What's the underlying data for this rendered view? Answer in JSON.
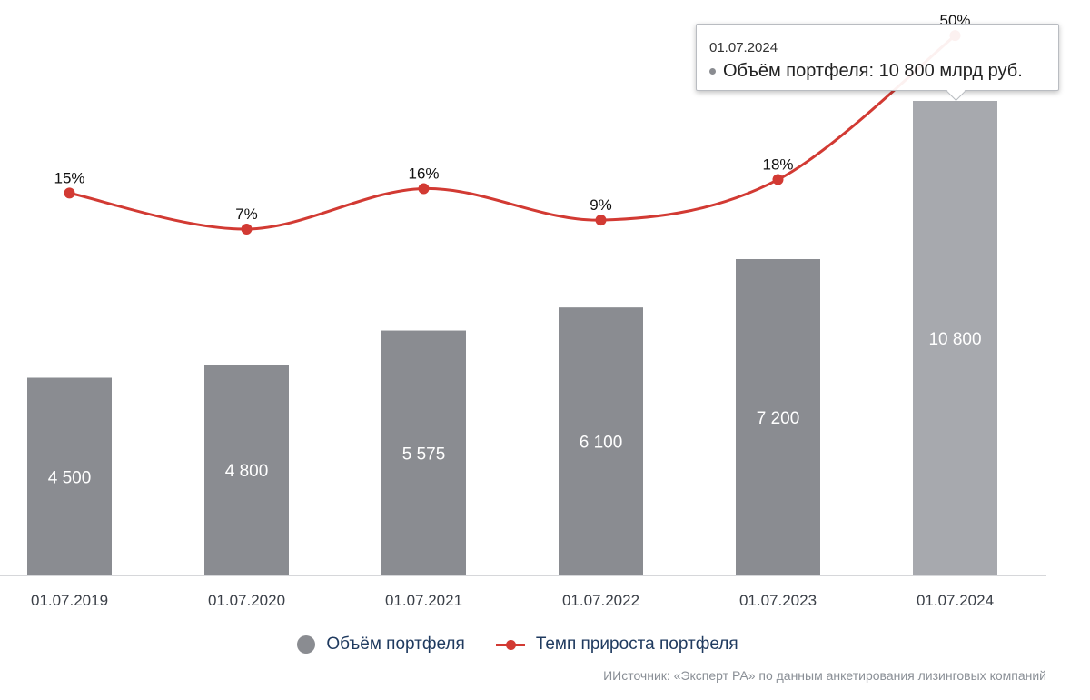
{
  "chart_data": {
    "type": "bar",
    "categories": [
      "01.07.2019",
      "01.07.2020",
      "01.07.2021",
      "01.07.2022",
      "01.07.2023",
      "01.07.2024"
    ],
    "series": [
      {
        "name": "Объём портфеля",
        "type": "bar",
        "values": [
          4500,
          4800,
          5575,
          6100,
          7200,
          10800
        ],
        "labels": [
          "4 500",
          "4 800",
          "5 575",
          "6 100",
          "7 200",
          "10 800"
        ],
        "color": "#8a8c91",
        "highlight_color": "#a7a9ae"
      },
      {
        "name": "Темп прироста портфеля",
        "type": "line",
        "values": [
          15,
          7,
          16,
          9,
          18,
          50
        ],
        "labels": [
          "15%",
          "7%",
          "16%",
          "9%",
          "18%",
          "50%"
        ],
        "color": "#d23a33"
      }
    ],
    "highlighted_index": 5
  },
  "legend": {
    "volume_label": "Объём портфеля",
    "growth_label": "Темп прироста портфеля"
  },
  "tooltip": {
    "date": "01.07.2024",
    "text": "Объём портфеля: 10 800 млрд руб."
  },
  "source": "ИИсточник: «Эксперт РА» по данным анкетирования лизинговых компаний",
  "colors": {
    "bar": "#8a8c91",
    "bar_hover": "#a7a9ae",
    "line": "#d23a33",
    "axis": "#c8cacd",
    "tick_text": "#3a3f47"
  }
}
